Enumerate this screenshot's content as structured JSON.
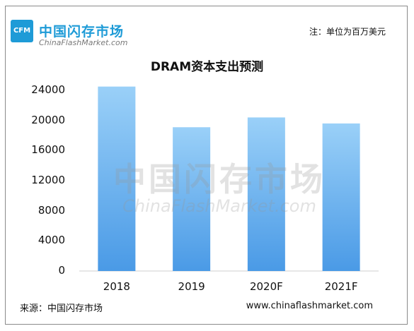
{
  "logo": {
    "abbr": "CFM",
    "name_cn": "中国闪存市场",
    "name_en": "ChinaFlashMarket.com"
  },
  "unit_note": "注：单位为百万美元",
  "footer": {
    "source": "来源：中国闪存市场",
    "website": "www.chinaflashmarket.com"
  },
  "watermark": {
    "cn": "中国闪存市场",
    "en": "ChinaFlashMarket.com"
  },
  "colors": {
    "bar_top": "#9ad0f8",
    "bar_bottom": "#4a9ae6",
    "brand": "#1e9bd7"
  },
  "chart_data": {
    "type": "bar",
    "title": "DRAM资本支出预测",
    "categories": [
      "2018",
      "2019",
      "2020F",
      "2021F"
    ],
    "values": [
      24500,
      19100,
      20400,
      19600
    ],
    "ylim": [
      0,
      24000
    ],
    "yticks": [
      0,
      4000,
      8000,
      12000,
      16000,
      20000,
      24000
    ],
    "xlabel": "",
    "ylabel": "",
    "grid": false
  }
}
